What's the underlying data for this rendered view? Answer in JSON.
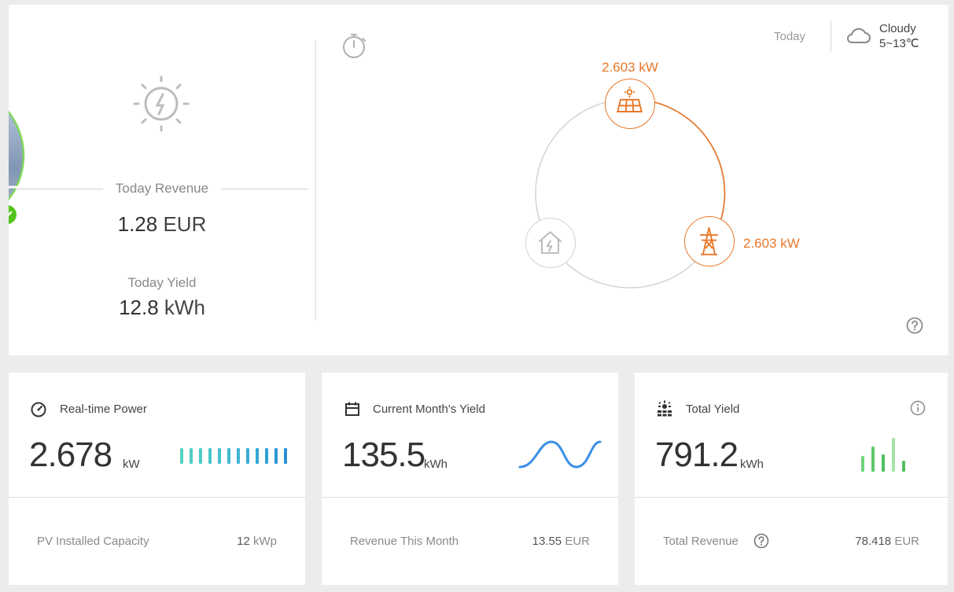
{
  "summary": {
    "revenue_label": "Today Revenue",
    "revenue_value": "1.28",
    "revenue_unit": "EUR",
    "yield_label": "Today Yield",
    "yield_value": "12.8",
    "yield_unit": "kWh"
  },
  "flow": {
    "date_label": "Today",
    "weather_condition": "Cloudy",
    "weather_temp": "5~13℃",
    "pv_power": "2.603 kW",
    "grid_power": "2.603 kW"
  },
  "cards": {
    "realtime": {
      "title": "Real-time Power",
      "value": "2.678",
      "unit": "kW",
      "footer_label": "PV Installed Capacity",
      "footer_value": "12",
      "footer_unit": "kWp"
    },
    "month": {
      "title": "Current Month's Yield",
      "value": "135.5",
      "unit": "kWh",
      "footer_label": "Revenue This Month",
      "footer_value": "13.55",
      "footer_unit": "EUR"
    },
    "total": {
      "title": "Total Yield",
      "value": "791.2",
      "unit": "kWh",
      "footer_label": "Total Revenue",
      "footer_value": "78.418",
      "footer_unit": "EUR"
    }
  },
  "colors": {
    "accent_orange": "#e8782a",
    "status_green": "#52c41a",
    "teal_bars": "#4fd3c4",
    "blue_bars": "#2e9fd6",
    "wave_blue": "#3b8fe8",
    "green_bars": "#5cc96a"
  },
  "icons": {
    "sun_bolt": "sun-bolt-icon",
    "timer": "stopwatch-icon",
    "cloud": "cloud-icon",
    "solar_panel": "solar-panel-icon",
    "home": "home-icon",
    "power_tower": "power-tower-icon",
    "help": "help-icon",
    "gauge": "gauge-icon",
    "calendar": "calendar-icon",
    "total": "solar-cells-icon",
    "info": "info-icon"
  }
}
